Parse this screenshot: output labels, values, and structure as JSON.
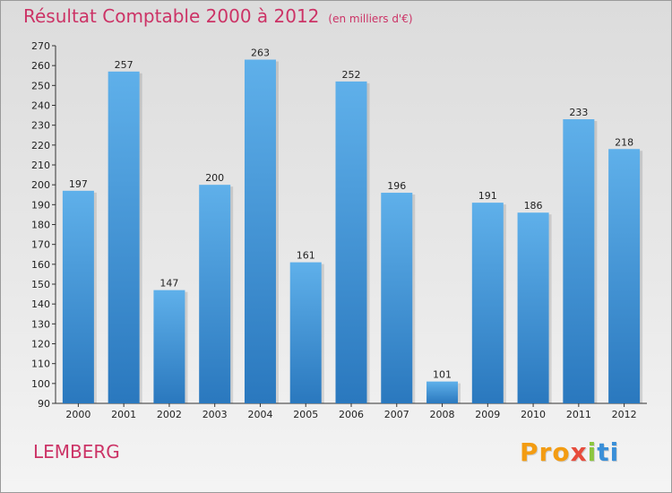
{
  "title": "Résultat Comptable 2000 à 2012",
  "subtitle": "(en milliers d'€)",
  "place": "LEMBERG",
  "logo_text": "Proxiti",
  "colors": {
    "title": "#cc3366",
    "bar_top": "#5fb0ea",
    "bar_bottom": "#2a78be"
  },
  "chart_data": {
    "type": "bar",
    "title": "Résultat Comptable 2000 à 2012",
    "subtitle": "(en milliers d'€)",
    "categories": [
      "2000",
      "2001",
      "2002",
      "2003",
      "2004",
      "2005",
      "2006",
      "2007",
      "2008",
      "2009",
      "2010",
      "2011",
      "2012"
    ],
    "values": [
      197,
      257,
      147,
      200,
      263,
      161,
      252,
      196,
      101,
      191,
      186,
      233,
      218
    ],
    "ylim": [
      90,
      270
    ],
    "yticks": [
      90,
      100,
      110,
      120,
      130,
      140,
      150,
      160,
      170,
      180,
      190,
      200,
      210,
      220,
      230,
      240,
      250,
      260,
      270
    ],
    "grid": false,
    "legend": "none"
  }
}
